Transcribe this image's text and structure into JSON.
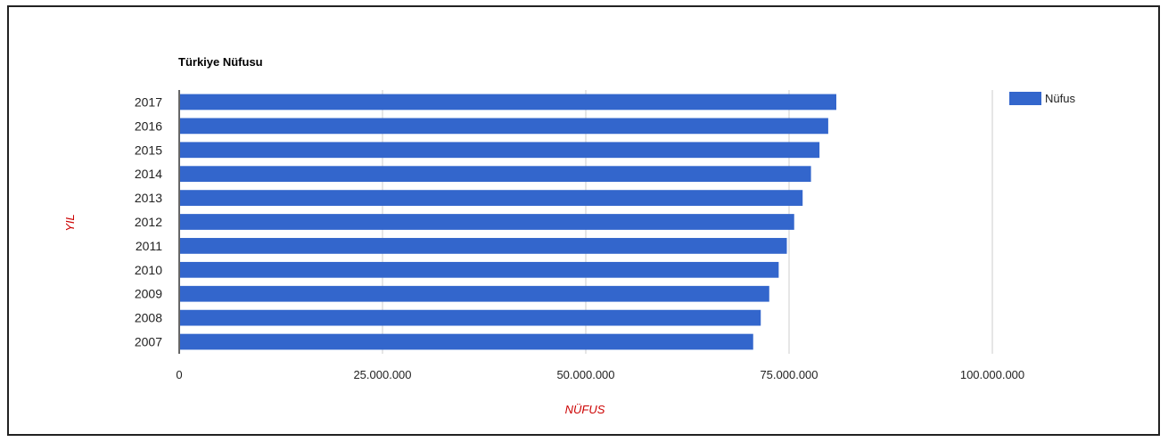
{
  "chart_data": {
    "type": "bar",
    "orientation": "horizontal",
    "title": "Türkiye Nüfusu",
    "xlabel": "NÜFUS",
    "ylabel": "YIL",
    "categories": [
      "2017",
      "2016",
      "2015",
      "2014",
      "2013",
      "2012",
      "2011",
      "2010",
      "2009",
      "2008",
      "2007"
    ],
    "series": [
      {
        "name": "Nüfus",
        "color": "#3366cc",
        "values": [
          80810525,
          79814871,
          78741053,
          77695904,
          76667864,
          75627384,
          74724269,
          73722988,
          72561312,
          71517100,
          70586256
        ]
      }
    ],
    "xlim": [
      0,
      100000000
    ],
    "xticks": [
      0,
      25000000,
      50000000,
      75000000,
      100000000
    ],
    "xtick_labels": [
      "0",
      "25.000.000",
      "50.000.000",
      "75.000.000",
      "100.000.000"
    ],
    "axis_title_color": "#cc0000",
    "grid": true,
    "legend_position": "right"
  }
}
